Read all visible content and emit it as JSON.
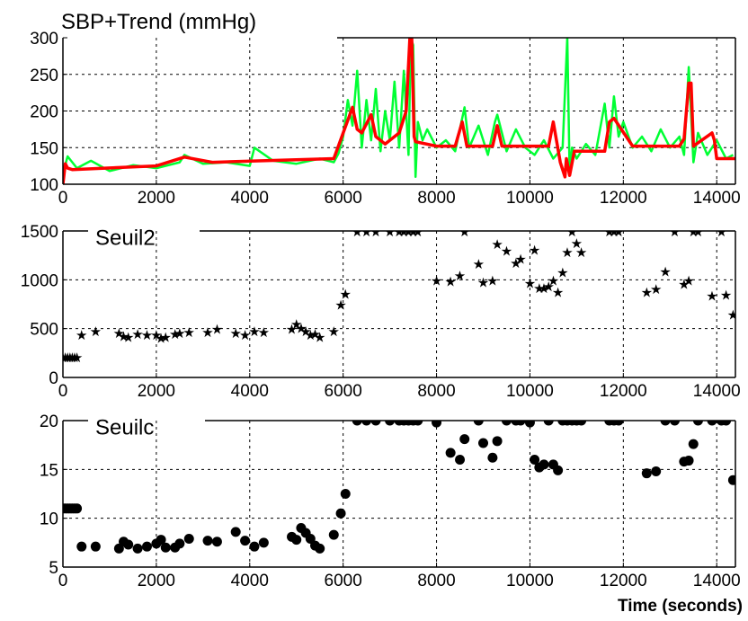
{
  "chart_data": [
    {
      "type": "line",
      "title": "SBP+Trend (mmHg)",
      "xlabel": "",
      "ylabel": "",
      "xlim": [
        0,
        14400
      ],
      "ylim": [
        100,
        300
      ],
      "xticks": [
        0,
        2000,
        4000,
        6000,
        8000,
        10000,
        12000,
        14000
      ],
      "yticks": [
        100,
        150,
        200,
        250,
        300
      ],
      "grid": true,
      "colors": {
        "raw": "#00ff33",
        "trend": "#ff0000"
      },
      "series": [
        {
          "style": "raw-signal",
          "color": "#00ff33",
          "x": [
            0,
            100,
            300,
            600,
            1000,
            1500,
            2000,
            2500,
            2600,
            3000,
            3500,
            4000,
            4100,
            4500,
            5000,
            5500,
            5800,
            5900,
            6000,
            6100,
            6200,
            6300,
            6400,
            6500,
            6600,
            6700,
            6800,
            6900,
            7000,
            7100,
            7200,
            7300,
            7400,
            7450,
            7500,
            7550,
            7600,
            7700,
            7800,
            8000,
            8200,
            8400,
            8550,
            8600,
            8700,
            8900,
            9100,
            9250,
            9300,
            9500,
            9700,
            9900,
            10100,
            10300,
            10500,
            10700,
            10800,
            10850,
            10900,
            11000,
            11200,
            11400,
            11600,
            11700,
            11800,
            11900,
            12000,
            12200,
            12400,
            12600,
            12800,
            13000,
            13200,
            13300,
            13400,
            13500,
            13600,
            13800,
            14000,
            14200,
            14350
          ],
          "y": [
            115,
            138,
            122,
            132,
            118,
            126,
            122,
            130,
            140,
            128,
            130,
            125,
            150,
            132,
            128,
            135,
            130,
            142,
            165,
            215,
            180,
            255,
            150,
            215,
            160,
            230,
            145,
            200,
            160,
            240,
            150,
            255,
            140,
            300,
            290,
            110,
            185,
            160,
            175,
            150,
            160,
            145,
            190,
            205,
            150,
            180,
            140,
            185,
            195,
            145,
            175,
            150,
            140,
            160,
            135,
            150,
            300,
            115,
            150,
            135,
            155,
            140,
            210,
            150,
            220,
            165,
            185,
            150,
            165,
            145,
            175,
            150,
            165,
            140,
            260,
            130,
            170,
            140,
            160,
            135,
            140
          ]
        },
        {
          "style": "trend",
          "color": "#ff0000",
          "x": [
            0,
            50,
            100,
            200,
            2000,
            2600,
            3200,
            5800,
            6200,
            6300,
            6400,
            6600,
            6700,
            6900,
            7200,
            7350,
            7430,
            7470,
            7520,
            7550,
            8000,
            8400,
            8550,
            8650,
            9200,
            9300,
            9400,
            10400,
            10500,
            10650,
            10750,
            10780,
            10850,
            10950,
            11050,
            11600,
            11700,
            11800,
            12200,
            13200,
            13300,
            13400,
            13450,
            13500,
            13900,
            13950,
            14000,
            14400
          ],
          "y": [
            100,
            128,
            122,
            120,
            125,
            137,
            130,
            135,
            205,
            175,
            170,
            195,
            165,
            155,
            170,
            200,
            300,
            300,
            165,
            158,
            152,
            152,
            185,
            152,
            152,
            180,
            152,
            152,
            185,
            130,
            110,
            135,
            112,
            145,
            145,
            145,
            185,
            190,
            152,
            152,
            162,
            238,
            238,
            152,
            170,
            160,
            135,
            135
          ]
        }
      ]
    },
    {
      "type": "scatter",
      "title": "Seuil2",
      "xlabel": "",
      "ylabel": "",
      "xlim": [
        0,
        14400
      ],
      "ylim": [
        0,
        1500
      ],
      "xticks": [
        0,
        2000,
        4000,
        6000,
        8000,
        10000,
        12000,
        14000
      ],
      "yticks": [
        0,
        500,
        1000,
        1500
      ],
      "grid": true,
      "marker": "star",
      "x": [
        0,
        50,
        100,
        150,
        200,
        250,
        300,
        400,
        700,
        1200,
        1300,
        1400,
        1600,
        1800,
        2000,
        2100,
        2200,
        2400,
        2500,
        2700,
        3100,
        3300,
        3700,
        3900,
        4100,
        4300,
        4900,
        5000,
        5100,
        5200,
        5300,
        5400,
        5500,
        5800,
        5950,
        6050,
        6300,
        6500,
        6700,
        7000,
        7200,
        7300,
        7400,
        7500,
        7600,
        8000,
        8300,
        8500,
        8600,
        8900,
        9000,
        9200,
        9300,
        9500,
        9700,
        9800,
        10000,
        10100,
        10200,
        10300,
        10400,
        10500,
        10600,
        10700,
        10800,
        10900,
        11000,
        11100,
        11700,
        11800,
        11900,
        12500,
        12700,
        12900,
        13100,
        13300,
        13400,
        13500,
        13600,
        13900,
        14100,
        14200,
        14350
      ],
      "y": [
        210,
        210,
        210,
        210,
        210,
        210,
        210,
        440,
        480,
        460,
        430,
        420,
        450,
        440,
        440,
        410,
        420,
        450,
        460,
        470,
        470,
        500,
        460,
        440,
        480,
        470,
        500,
        550,
        510,
        480,
        440,
        450,
        420,
        480,
        750,
        860,
        1500,
        1500,
        1500,
        1500,
        1500,
        1500,
        1500,
        1500,
        1500,
        1000,
        990,
        1050,
        1500,
        1170,
        980,
        1000,
        1370,
        1300,
        1180,
        1220,
        970,
        1310,
        920,
        920,
        940,
        1000,
        880,
        1080,
        1290,
        1500,
        1380,
        1290,
        1500,
        1500,
        1500,
        880,
        910,
        1090,
        1500,
        960,
        1000,
        1500,
        1500,
        840,
        1500,
        850,
        650
      ]
    },
    {
      "type": "scatter",
      "title": "Seuilc",
      "xlabel": "Time (seconds)",
      "ylabel": "",
      "xlim": [
        0,
        14400
      ],
      "ylim": [
        5,
        20
      ],
      "xticks": [
        0,
        2000,
        4000,
        6000,
        8000,
        10000,
        12000,
        14000
      ],
      "yticks": [
        5,
        10,
        15,
        20
      ],
      "grid": true,
      "marker": "filled-circle",
      "x": [
        0,
        50,
        100,
        150,
        200,
        250,
        300,
        400,
        700,
        1200,
        1300,
        1400,
        1600,
        1800,
        2000,
        2100,
        2200,
        2400,
        2500,
        2700,
        3100,
        3300,
        3700,
        3900,
        4100,
        4300,
        4900,
        5000,
        5100,
        5200,
        5300,
        5400,
        5500,
        5800,
        5950,
        6050,
        6300,
        6500,
        6700,
        7000,
        7200,
        7300,
        7400,
        7500,
        7600,
        8000,
        8300,
        8500,
        8600,
        8900,
        9000,
        9200,
        9300,
        9500,
        9700,
        9800,
        10000,
        10100,
        10200,
        10300,
        10400,
        10500,
        10600,
        10700,
        10800,
        10900,
        11000,
        11100,
        11700,
        11800,
        11900,
        12500,
        12700,
        12900,
        13100,
        13300,
        13400,
        13500,
        13600,
        13900,
        14100,
        14200,
        14350
      ],
      "y": [
        11,
        11,
        11,
        11,
        11,
        11,
        11,
        7.1,
        7.1,
        6.9,
        7.6,
        7.3,
        6.9,
        7.1,
        7.4,
        7.8,
        7.0,
        7.0,
        7.4,
        7.9,
        7.7,
        7.6,
        8.6,
        7.7,
        7.1,
        7.5,
        8.1,
        7.8,
        9.0,
        8.5,
        7.9,
        7.2,
        6.9,
        8.3,
        10.5,
        12.5,
        20,
        20,
        20,
        20,
        20,
        20,
        20,
        20,
        20,
        19.8,
        16.7,
        16.0,
        18.1,
        20,
        17.7,
        16.2,
        17.9,
        20,
        20,
        20,
        19.8,
        16.0,
        15.2,
        15.5,
        20,
        15.5,
        14.9,
        20,
        20,
        20,
        20,
        20,
        20,
        20,
        20,
        14.6,
        14.8,
        20,
        20,
        15.8,
        15.9,
        17.6,
        20,
        20,
        20,
        20,
        13.9
      ]
    }
  ]
}
